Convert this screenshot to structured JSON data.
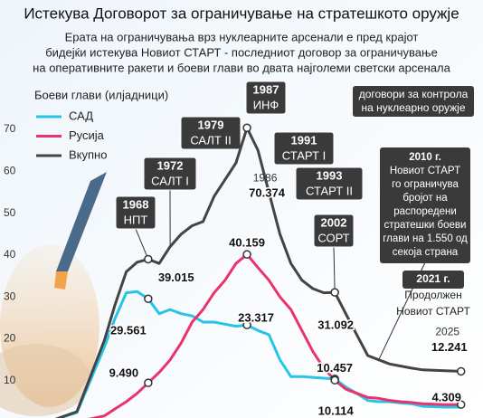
{
  "chart_data": {
    "type": "line",
    "title": "Истекува Договорот за ограничување на стратешкото оружје",
    "subtitle": [
      "Ерата на ограничувања врз нуклеарните арсенали е пред крајот",
      "бидејќи истекува Новиот СТАРТ - последниот договор за ограничување",
      "на оперативните ракети и боеви глави во двата најголеми светски арсенала"
    ],
    "y_label": "Боеви глави (илјадници)",
    "x": [
      1945,
      1950,
      1955,
      1960,
      1962,
      1964,
      1966,
      1968,
      1970,
      1972,
      1974,
      1976,
      1978,
      1980,
      1982,
      1984,
      1986,
      1988,
      1990,
      1992,
      1994,
      1996,
      1998,
      2000,
      2002,
      2004,
      2006,
      2008,
      2010,
      2012,
      2014,
      2016,
      2018,
      2020,
      2022,
      2025
    ],
    "xlim": [
      1941,
      2029
    ],
    "xticks": [
      1986,
      2025
    ],
    "ylim": [
      1,
      73
    ],
    "yticks": [
      10,
      20,
      30,
      40,
      50,
      60,
      70
    ],
    "grid": false,
    "series": [
      {
        "name": "САД",
        "color": "#27c4e6",
        "values": [
          0,
          0.3,
          2.4,
          18,
          25,
          31,
          31.3,
          29.561,
          26,
          27,
          26,
          25.5,
          24,
          24,
          23.5,
          23,
          23.317,
          22,
          21,
          15,
          11,
          11,
          10.8,
          10.6,
          10.457,
          8.5,
          7,
          5.3,
          5,
          5,
          4.7,
          4.5,
          3.9,
          3.8,
          3.7,
          3.7
        ],
        "value_labels": [
          null,
          null,
          null,
          null,
          null,
          null,
          null,
          "29.561",
          null,
          null,
          null,
          null,
          null,
          null,
          null,
          null,
          "23.317",
          null,
          null,
          null,
          null,
          null,
          null,
          null,
          "10.457",
          null,
          null,
          null,
          null,
          null,
          null,
          null,
          null,
          null,
          null,
          null
        ]
      },
      {
        "name": "Русија",
        "color": "#e8336b",
        "values": [
          0,
          0,
          0.2,
          1.6,
          3.3,
          5,
          7,
          9.49,
          12,
          15,
          19,
          24,
          27,
          31,
          34,
          38,
          40.159,
          37,
          34,
          30,
          27,
          22,
          17,
          13,
          10.114,
          8,
          7,
          6,
          5.8,
          5.3,
          5,
          4.8,
          4.5,
          4.4,
          4.3,
          4.309
        ],
        "value_labels": [
          null,
          null,
          null,
          null,
          null,
          null,
          null,
          "9.490",
          null,
          null,
          null,
          null,
          null,
          null,
          null,
          null,
          "40.159",
          null,
          null,
          null,
          null,
          null,
          null,
          null,
          "10.114",
          null,
          null,
          null,
          null,
          null,
          null,
          null,
          null,
          null,
          null,
          "4.309"
        ]
      },
      {
        "name": "Вкупно",
        "color": "#444444",
        "values": [
          0,
          0.3,
          2.6,
          19.6,
          28.3,
          36,
          38.3,
          39.015,
          38,
          42,
          45,
          47,
          48,
          54,
          58,
          62,
          70.374,
          65,
          55,
          45,
          38,
          34,
          32,
          31,
          31.092,
          26,
          21,
          16,
          15,
          14,
          13.5,
          13,
          12.6,
          12.5,
          12.4,
          12.241
        ],
        "value_labels": [
          null,
          null,
          null,
          null,
          null,
          null,
          null,
          "39.015",
          null,
          null,
          null,
          null,
          null,
          null,
          null,
          null,
          "70.374",
          null,
          null,
          null,
          null,
          null,
          null,
          null,
          "31.092",
          null,
          null,
          null,
          null,
          null,
          null,
          null,
          null,
          null,
          null,
          "12.241"
        ]
      }
    ],
    "legend_title": [
      "договори за контрола",
      "на нуклеарно оружје"
    ],
    "treaties": [
      {
        "year": "1968",
        "name": "НПТ"
      },
      {
        "year": "1972",
        "name": "САЛТ I"
      },
      {
        "year": "1979",
        "name": "САЛТ II"
      },
      {
        "year": "1987",
        "name": "ИНФ"
      },
      {
        "year": "1991",
        "name": "СТАРТ I"
      },
      {
        "year": "1993",
        "name": "СТАРТ II"
      },
      {
        "year": "2002",
        "name": "СОРТ"
      }
    ],
    "note_2010": [
      "2010 г.",
      "Новиот СТАРТ",
      "го ограничува",
      "бројот на",
      "распоредени",
      "стратешки боеви",
      "глави на 1.550 од",
      "секоја страна"
    ],
    "note_2021": [
      "2021 г.",
      "Продолжен",
      "Новиот СТАРТ"
    ]
  }
}
